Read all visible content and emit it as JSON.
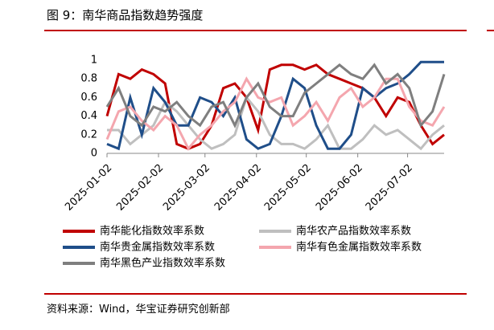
{
  "header": {
    "title": "图 9：南华商品指数趋势强度"
  },
  "chart_data": {
    "type": "line",
    "x": [
      "2025-01-02",
      "2025-01-09",
      "2025-01-16",
      "2025-01-23",
      "2025-01-30",
      "2025-02-06",
      "2025-02-13",
      "2025-02-20",
      "2025-02-27",
      "2025-03-06",
      "2025-03-13",
      "2025-03-20",
      "2025-03-27",
      "2025-04-03",
      "2025-04-10",
      "2025-04-17",
      "2025-04-24",
      "2025-05-01",
      "2025-05-08",
      "2025-05-15",
      "2025-05-22",
      "2025-05-29",
      "2025-06-05",
      "2025-06-12",
      "2025-06-19",
      "2025-06-26",
      "2025-07-03",
      "2025-07-10",
      "2025-07-17",
      "2025-07-24"
    ],
    "xlim": [
      "2025-01-02",
      "2025-07-24"
    ],
    "xticks": [
      "2025-01-02",
      "2025-02-02",
      "2025-03-02",
      "2025-04-02",
      "2025-05-02",
      "2025-06-02",
      "2025-07-02"
    ],
    "ylim": [
      0,
      1
    ],
    "yticks": [
      0,
      0.2,
      0.4,
      0.6,
      0.8,
      1
    ],
    "series": [
      {
        "name": "南华能化指数效率系数",
        "color": "#c00000",
        "values": [
          0.4,
          0.85,
          0.8,
          0.9,
          0.85,
          0.75,
          0.1,
          0.05,
          0.1,
          0.3,
          0.7,
          0.75,
          0.6,
          0.25,
          0.9,
          0.95,
          0.95,
          0.9,
          0.95,
          0.85,
          0.8,
          0.75,
          0.7,
          0.6,
          0.4,
          0.6,
          0.55,
          0.3,
          0.1,
          0.2
        ]
      },
      {
        "name": "南华农产品指数效率系数",
        "color": "#bfbfbf",
        "values": [
          0.25,
          0.25,
          0.1,
          0.2,
          0.3,
          0.55,
          0.45,
          0.3,
          0.15,
          0.05,
          0.1,
          0.2,
          0.6,
          0.45,
          0.2,
          0.1,
          0.1,
          0.05,
          0.15,
          0.3,
          0.05,
          0.05,
          0.15,
          0.3,
          0.2,
          0.25,
          0.15,
          0.05,
          0.2,
          0.3
        ]
      },
      {
        "name": "南华贵金属指数效率系数",
        "color": "#1f4e89",
        "values": [
          0.1,
          0.05,
          0.6,
          0.2,
          0.7,
          0.55,
          0.3,
          0.3,
          0.6,
          0.55,
          0.4,
          0.6,
          0.15,
          0.05,
          0.1,
          0.4,
          0.8,
          0.7,
          0.3,
          0.05,
          0.05,
          0.2,
          0.7,
          0.6,
          0.7,
          0.75,
          0.85,
          0.98,
          0.98,
          0.98
        ]
      },
      {
        "name": "南华有色金属指数效率系数",
        "color": "#f4a6ae",
        "values": [
          0.15,
          0.45,
          0.5,
          0.35,
          0.25,
          0.4,
          0.3,
          0.05,
          0.2,
          0.3,
          0.45,
          0.55,
          0.8,
          0.6,
          0.55,
          0.6,
          0.3,
          0.4,
          0.55,
          0.35,
          0.6,
          0.7,
          0.5,
          0.6,
          0.8,
          0.8,
          0.5,
          0.35,
          0.3,
          0.5
        ]
      },
      {
        "name": "南华黑色产业指数效率系数",
        "color": "#7f7f7f",
        "values": [
          0.5,
          0.7,
          0.4,
          0.3,
          0.5,
          0.45,
          0.55,
          0.4,
          0.3,
          0.5,
          0.55,
          0.3,
          0.6,
          0.75,
          0.5,
          0.4,
          0.4,
          0.65,
          0.75,
          0.85,
          0.95,
          0.85,
          0.8,
          0.95,
          0.75,
          0.85,
          0.7,
          0.3,
          0.45,
          0.85
        ]
      }
    ]
  },
  "footer": {
    "source": "资料来源：Wind，华宝证券研究创新部"
  }
}
